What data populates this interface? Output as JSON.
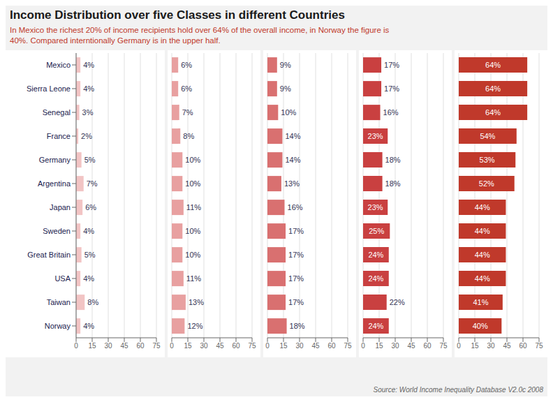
{
  "chart_data": {
    "type": "bar",
    "orientation": "horizontal",
    "title": "Income Distribution over five Classes in different Countries",
    "subtitle": "In Mexico the richest 20% of income recipients hold over 64% of the overall income, in Norway the figure is\n40%. Compared interntionally Germany is in the upper half.",
    "source": "Source: World Income Inequality Database V2.0c 2008",
    "categories": [
      "Mexico",
      "Sierra Leone",
      "Senegal",
      "France",
      "Germany",
      "Argentina",
      "Japan",
      "Sweden",
      "Great Britain",
      "USA",
      "Taiwan",
      "Norway"
    ],
    "series": [
      {
        "color": "#f2c4c4",
        "values": [
          4,
          4,
          3,
          2,
          5,
          7,
          6,
          4,
          5,
          4,
          8,
          4
        ],
        "value_labels": [
          "4%",
          "4%",
          "3%",
          "2%",
          "5%",
          "7%",
          "6%",
          "4%",
          "5%",
          "4%",
          "8%",
          "4%"
        ]
      },
      {
        "color": "#e8a0a0",
        "values": [
          6,
          6,
          7,
          8,
          10,
          10,
          11,
          10,
          10,
          11,
          13,
          12
        ],
        "value_labels": [
          "6%",
          "6%",
          "7%",
          "8%",
          "10%",
          "10%",
          "11%",
          "10%",
          "10%",
          "11%",
          "13%",
          "12%"
        ]
      },
      {
        "color": "#d97070",
        "values": [
          9,
          9,
          10,
          14,
          14,
          13,
          16,
          17,
          17,
          17,
          17,
          18
        ],
        "value_labels": [
          "9%",
          "9%",
          "10%",
          "14%",
          "14%",
          "13%",
          "16%",
          "17%",
          "17%",
          "17%",
          "17%",
          "18%"
        ]
      },
      {
        "color": "#c94040",
        "values": [
          17,
          17,
          16,
          23,
          18,
          18,
          23,
          25,
          24,
          24,
          22,
          24
        ],
        "value_labels": [
          "17%",
          "17%",
          "16%",
          "23%",
          "18%",
          "18%",
          "23%",
          "25%",
          "24%",
          "24%",
          "22%",
          "24%"
        ]
      },
      {
        "color": "#c0392b",
        "values": [
          64,
          64,
          64,
          54,
          53,
          52,
          44,
          44,
          44,
          44,
          41,
          40
        ],
        "value_labels": [
          "64%",
          "64%",
          "64%",
          "54%",
          "53%",
          "52%",
          "44%",
          "44%",
          "44%",
          "44%",
          "41%",
          "40%"
        ]
      }
    ],
    "xlim": [
      0,
      75
    ],
    "xticks": [
      0,
      15,
      30,
      45,
      60,
      75
    ],
    "grid": true,
    "data_labels": true
  }
}
